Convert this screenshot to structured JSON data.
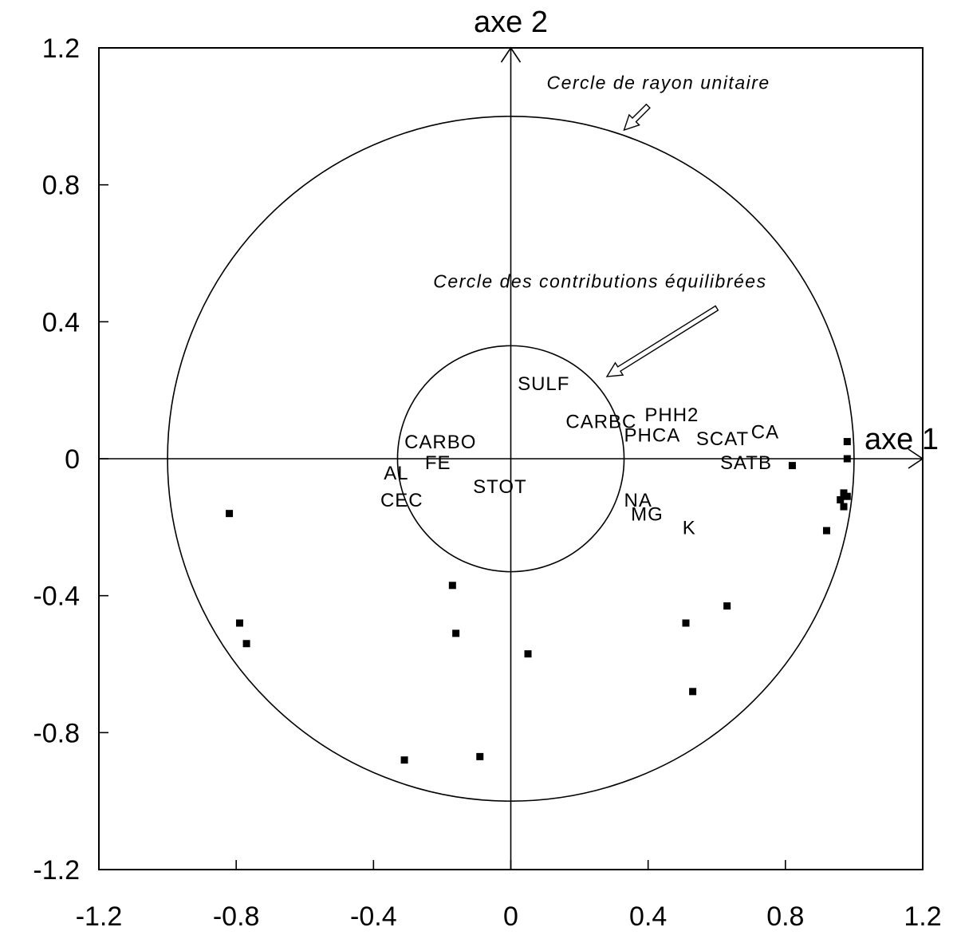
{
  "chart_data": {
    "type": "scatter",
    "title": "",
    "xlabel": "axe 1",
    "ylabel": "axe 2",
    "xlim": [
      -1.2,
      1.2
    ],
    "ylim": [
      -1.2,
      1.2
    ],
    "x_ticks": [
      "-1.2",
      "-0.8",
      "-0.4",
      "0",
      "0.4",
      "0.8",
      "1.2"
    ],
    "y_ticks": [
      "1.2",
      "0.8",
      "0.4",
      "0",
      "-0.4",
      "-0.8",
      "-1.2"
    ],
    "grid": false,
    "circles": [
      {
        "name": "Cercle de rayon unitaire",
        "radius": 1.0
      },
      {
        "name": "Cercle des contributions équilibrées",
        "radius": 0.33
      }
    ],
    "annotations": [
      {
        "text": "Cercle de rayon unitaire",
        "x": 0.43,
        "y": 1.08,
        "arrow_from": [
          0.4,
          1.03
        ],
        "arrow_to": [
          0.33,
          0.96
        ]
      },
      {
        "text": "Cercle des contributions équilibrées",
        "x": 0.26,
        "y": 0.5,
        "arrow_from": [
          0.6,
          0.44
        ],
        "arrow_to": [
          0.28,
          0.24
        ]
      }
    ],
    "variables": [
      {
        "label": "SULF",
        "x": 0.02,
        "y": 0.2
      },
      {
        "label": "CARBC",
        "x": 0.16,
        "y": 0.09
      },
      {
        "label": "PHH2",
        "x": 0.39,
        "y": 0.11
      },
      {
        "label": "PHCA",
        "x": 0.33,
        "y": 0.05
      },
      {
        "label": "SCAT",
        "x": 0.54,
        "y": 0.04
      },
      {
        "label": "CA",
        "x": 0.7,
        "y": 0.06
      },
      {
        "label": "SATB",
        "x": 0.61,
        "y": -0.03
      },
      {
        "label": "CARBO",
        "x": -0.31,
        "y": 0.03
      },
      {
        "label": "FE",
        "x": -0.25,
        "y": -0.03
      },
      {
        "label": "AL",
        "x": -0.37,
        "y": -0.06
      },
      {
        "label": "STOT",
        "x": -0.11,
        "y": -0.1
      },
      {
        "label": "CEC",
        "x": -0.38,
        "y": -0.14
      },
      {
        "label": "NA",
        "x": 0.33,
        "y": -0.14
      },
      {
        "label": "MG",
        "x": 0.35,
        "y": -0.18
      },
      {
        "label": "K",
        "x": 0.5,
        "y": -0.22
      }
    ],
    "points": [
      {
        "x": -0.82,
        "y": -0.16
      },
      {
        "x": -0.79,
        "y": -0.48
      },
      {
        "x": -0.77,
        "y": -0.54
      },
      {
        "x": -0.31,
        "y": -0.88
      },
      {
        "x": -0.17,
        "y": -0.37
      },
      {
        "x": -0.16,
        "y": -0.51
      },
      {
        "x": -0.09,
        "y": -0.87
      },
      {
        "x": 0.05,
        "y": -0.57
      },
      {
        "x": 0.51,
        "y": -0.48
      },
      {
        "x": 0.53,
        "y": -0.68
      },
      {
        "x": 0.63,
        "y": -0.43
      },
      {
        "x": 0.82,
        "y": -0.02
      },
      {
        "x": 0.92,
        "y": -0.21
      },
      {
        "x": 0.96,
        "y": -0.12
      },
      {
        "x": 0.97,
        "y": -0.1
      },
      {
        "x": 0.97,
        "y": -0.14
      },
      {
        "x": 0.98,
        "y": -0.11
      },
      {
        "x": 0.98,
        "y": 0.0
      },
      {
        "x": 0.98,
        "y": 0.05
      }
    ]
  }
}
